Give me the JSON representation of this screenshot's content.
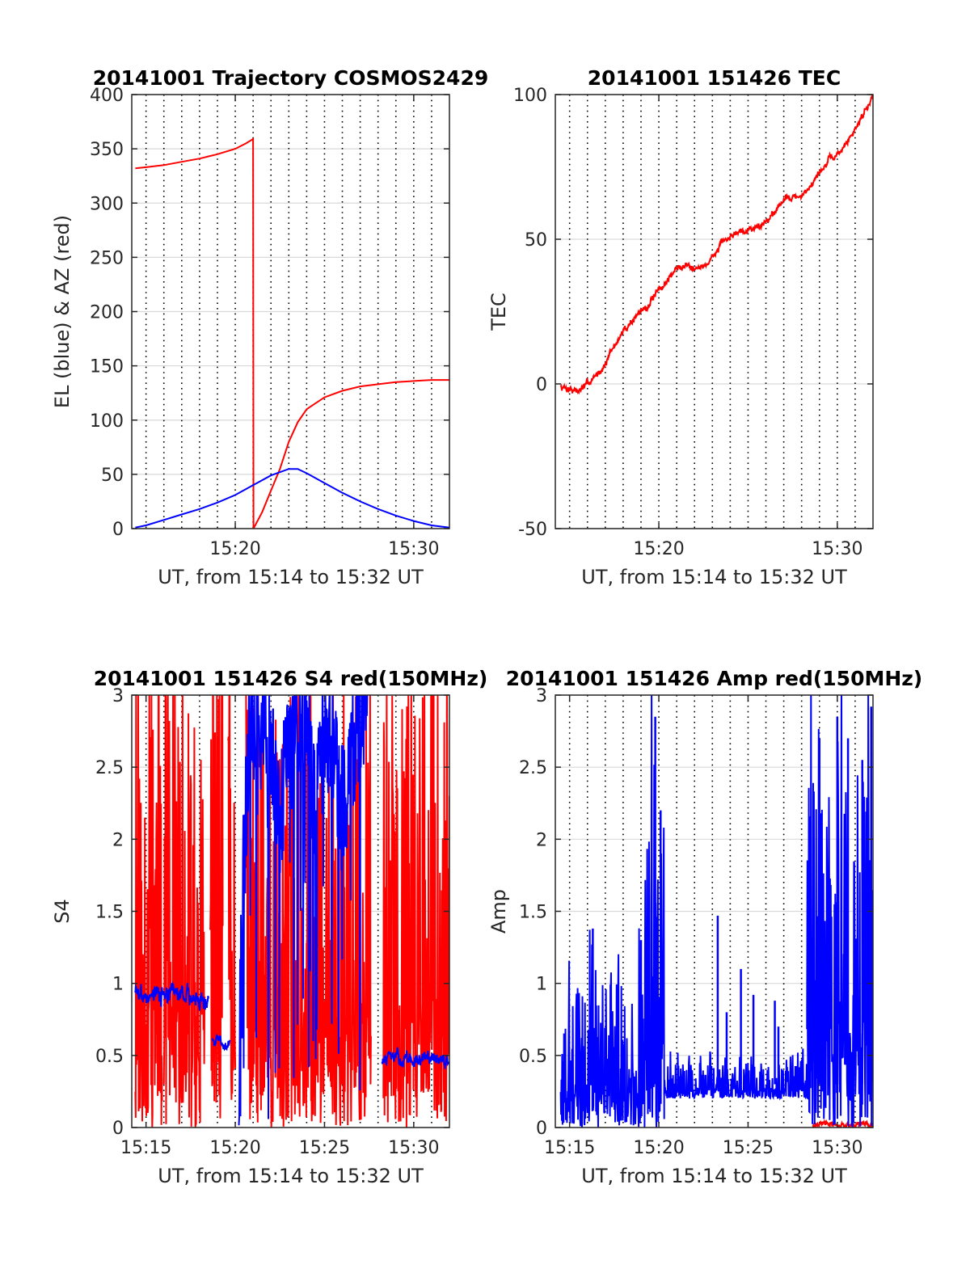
{
  "colors": {
    "red": "#ff0000",
    "blue": "#0000ff",
    "grid": "#d9d9d9",
    "axis": "#262626"
  },
  "chart_data": [
    {
      "type": "line",
      "title": "20141001 Trajectory COSMOS2429",
      "xlabel": "UT, from 15:14 to 15:32 UT",
      "ylabel": "EL (blue) & AZ (red)",
      "xlim": [
        14.2,
        32.0
      ],
      "ylim": [
        0,
        400
      ],
      "xticks": [
        20,
        30
      ],
      "xtick_labels": [
        "15:20",
        "15:30"
      ],
      "yticks": [
        0,
        50,
        100,
        150,
        200,
        250,
        300,
        350,
        400
      ],
      "ytick_labels": [
        "0",
        "50",
        "100",
        "150",
        "200",
        "250",
        "300",
        "350",
        "400"
      ],
      "vlines": [
        15,
        16,
        17,
        18,
        19,
        20,
        21,
        22,
        23,
        24,
        25,
        26,
        27,
        28,
        29,
        30,
        31
      ],
      "grid": true,
      "series": [
        {
          "color": "red",
          "style": "line",
          "points": [
            [
              14.4,
              332
            ],
            [
              15,
              333
            ],
            [
              16,
              335
            ],
            [
              17,
              338
            ],
            [
              18,
              341
            ],
            [
              19,
              345
            ],
            [
              20,
              350
            ],
            [
              20.6,
              355
            ],
            [
              21.0,
              359
            ],
            [
              21.02,
              0
            ],
            [
              21.5,
              15
            ],
            [
              22,
              35
            ],
            [
              22.5,
              55
            ],
            [
              23,
              80
            ],
            [
              23.5,
              98
            ],
            [
              24,
              110
            ],
            [
              25,
              121
            ],
            [
              26,
              127
            ],
            [
              27,
              131
            ],
            [
              28,
              133
            ],
            [
              29,
              135
            ],
            [
              30,
              136
            ],
            [
              31,
              137
            ],
            [
              32,
              137
            ]
          ]
        },
        {
          "color": "blue",
          "style": "line",
          "points": [
            [
              14.4,
              1
            ],
            [
              15,
              3
            ],
            [
              16,
              8
            ],
            [
              17,
              13
            ],
            [
              18,
              18
            ],
            [
              19,
              24
            ],
            [
              20,
              31
            ],
            [
              21,
              40
            ],
            [
              22,
              49
            ],
            [
              23,
              55
            ],
            [
              23.5,
              55
            ],
            [
              24,
              51
            ],
            [
              25,
              42
            ],
            [
              26,
              33
            ],
            [
              27,
              25
            ],
            [
              28,
              18
            ],
            [
              29,
              12
            ],
            [
              30,
              7
            ],
            [
              31,
              3
            ],
            [
              32,
              1
            ]
          ]
        }
      ]
    },
    {
      "type": "line",
      "title": "20141001 151426 TEC",
      "xlabel": "UT, from 15:14 to 15:32 UT",
      "ylabel": "TEC",
      "xlim": [
        14.2,
        32.0
      ],
      "ylim": [
        -50,
        100
      ],
      "xticks": [
        20,
        30
      ],
      "xtick_labels": [
        "15:20",
        "15:30"
      ],
      "yticks": [
        -50,
        0,
        50,
        100
      ],
      "ytick_labels": [
        "-50",
        "0",
        "50",
        "100"
      ],
      "vlines": [
        15,
        16,
        17,
        18,
        19,
        20,
        21,
        22,
        23,
        24,
        25,
        26,
        27,
        28,
        29,
        30,
        31
      ],
      "grid": true,
      "series": [
        {
          "color": "red",
          "style": "noisy",
          "noise": 1.2,
          "seed": 7,
          "points": [
            [
              14.5,
              -1
            ],
            [
              15.0,
              -1.5
            ],
            [
              15.5,
              -2.5
            ],
            [
              16.0,
              0
            ],
            [
              16.5,
              3
            ],
            [
              17.0,
              7
            ],
            [
              17.5,
              13
            ],
            [
              18.0,
              18
            ],
            [
              18.5,
              22
            ],
            [
              19.0,
              25
            ],
            [
              19.5,
              28
            ],
            [
              20.0,
              32
            ],
            [
              20.5,
              36
            ],
            [
              21.0,
              40
            ],
            [
              21.5,
              41
            ],
            [
              22.0,
              41
            ],
            [
              22.5,
              40
            ],
            [
              23.0,
              44
            ],
            [
              23.5,
              48
            ],
            [
              24.0,
              51
            ],
            [
              24.5,
              53
            ],
            [
              25.0,
              54
            ],
            [
              25.5,
              54
            ],
            [
              26.0,
              56
            ],
            [
              26.5,
              60
            ],
            [
              27.0,
              64
            ],
            [
              27.5,
              65
            ],
            [
              28.0,
              64
            ],
            [
              28.5,
              69
            ],
            [
              29.0,
              73
            ],
            [
              29.5,
              77
            ],
            [
              30.0,
              79
            ],
            [
              30.5,
              83
            ],
            [
              31.0,
              88
            ],
            [
              31.5,
              94
            ],
            [
              32.0,
              100
            ]
          ]
        }
      ]
    },
    {
      "type": "line",
      "title": "20141001 151426 S4 red(150MHz)",
      "xlabel": "UT, from 15:14 to 15:32 UT",
      "ylabel": "S4",
      "xlim": [
        14.2,
        32.0
      ],
      "ylim": [
        0,
        3
      ],
      "xticks": [
        15,
        20,
        25,
        30
      ],
      "xtick_labels": [
        "15:15",
        "15:20",
        "15:25",
        "15:30"
      ],
      "yticks": [
        0,
        0.5,
        1,
        1.5,
        2,
        2.5,
        3
      ],
      "ytick_labels": [
        "0",
        "0.5",
        "1",
        "1.5",
        "2",
        "2.5",
        "3"
      ],
      "vlines": [
        15,
        16,
        17,
        18,
        19,
        20,
        21,
        22,
        23,
        24,
        25,
        26,
        27,
        28,
        29,
        30,
        31
      ],
      "grid": true,
      "series": [
        {
          "color": "red",
          "style": "spikes",
          "lo": 0,
          "hi": 3,
          "seed": 11,
          "segments": [
            [
              14.4,
              15.9
            ],
            [
              16.0,
              18.3
            ],
            [
              18.6,
              19.3
            ],
            [
              19.6,
              20.0
            ],
            [
              20.6,
              27.6
            ],
            [
              28.3,
              32.0
            ]
          ]
        },
        {
          "color": "blue",
          "style": "noisy",
          "noise": 0.07,
          "seed": 3,
          "points": [
            [
              14.4,
              0.95
            ],
            [
              15,
              0.93
            ],
            [
              16,
              0.92
            ],
            [
              17,
              0.92
            ],
            [
              18,
              0.9
            ],
            [
              18.5,
              0.88
            ]
          ]
        },
        {
          "color": "blue",
          "style": "noisy",
          "noise": 0.04,
          "seed": 5,
          "points": [
            [
              18.7,
              0.62
            ],
            [
              19.2,
              0.6
            ],
            [
              19.7,
              0.58
            ]
          ]
        },
        {
          "color": "blue",
          "style": "chaos",
          "lo": 0.0,
          "hi": 3,
          "seed": 9,
          "points": [
            [
              20.2,
              0.2
            ],
            [
              20.4,
              1.5
            ],
            [
              20.8,
              2.6
            ],
            [
              21.5,
              2.8
            ],
            [
              22,
              2.5
            ],
            [
              22.5,
              2.0
            ],
            [
              23,
              2.5
            ],
            [
              23.5,
              2.7
            ],
            [
              24,
              2.6
            ],
            [
              24.5,
              2.0
            ],
            [
              25,
              2.6
            ],
            [
              25.5,
              2.5
            ],
            [
              26,
              2.0
            ],
            [
              26.5,
              2.4
            ],
            [
              27,
              2.6
            ],
            [
              27.4,
              2.8
            ]
          ]
        },
        {
          "color": "blue",
          "style": "noisy",
          "noise": 0.05,
          "seed": 13,
          "points": [
            [
              28.2,
              0.47
            ],
            [
              29,
              0.48
            ],
            [
              30,
              0.46
            ],
            [
              31,
              0.48
            ],
            [
              32,
              0.45
            ]
          ]
        }
      ]
    },
    {
      "type": "line",
      "title": "20141001 151426 Amp red(150MHz)",
      "xlabel": "UT, from 15:14 to 15:32 UT",
      "ylabel": "Amp",
      "xlim": [
        14.2,
        32.0
      ],
      "ylim": [
        0,
        3
      ],
      "xticks": [
        15,
        20,
        25,
        30
      ],
      "xtick_labels": [
        "15:15",
        "15:20",
        "15:25",
        "15:30"
      ],
      "yticks": [
        0,
        0.5,
        1,
        1.5,
        2,
        2.5,
        3
      ],
      "ytick_labels": [
        "0",
        "0.5",
        "1",
        "1.5",
        "2",
        "2.5",
        "3"
      ],
      "vlines": [
        15,
        16,
        17,
        18,
        19,
        20,
        21,
        22,
        23,
        24,
        25,
        26,
        27,
        28,
        29,
        30,
        31
      ],
      "grid": true,
      "series": [
        {
          "color": "red",
          "style": "noisy",
          "noise": 0.02,
          "seed": 21,
          "points": [
            [
              28.6,
              0.02
            ],
            [
              29.5,
              0.03
            ],
            [
              30.5,
              0.02
            ],
            [
              32,
              0.02
            ]
          ]
        },
        {
          "color": "blue",
          "style": "spikes",
          "lo": 0,
          "hi": 1.0,
          "seed": 17,
          "segments": [
            [
              14.5,
              19.2
            ]
          ]
        },
        {
          "color": "blue",
          "style": "spikes",
          "lo": 0,
          "hi": 2.3,
          "seed": 19,
          "segments": [
            [
              19.2,
              20.3
            ]
          ]
        },
        {
          "color": "blue",
          "style": "spikes",
          "lo": 0.2,
          "hi": 0.45,
          "seed": 23,
          "segments": [
            [
              20.3,
              28.3
            ]
          ]
        },
        {
          "color": "blue",
          "style": "spikes",
          "lo": 0,
          "hi": 2.5,
          "seed": 29,
          "segments": [
            [
              28.3,
              32.0
            ]
          ]
        },
        {
          "color": "blue",
          "style": "points",
          "points": [
            [
              16.3,
              1.38
            ],
            [
              19.0,
              1.3
            ],
            [
              19.8,
              2.85
            ],
            [
              20.1,
              2.2
            ],
            [
              23.3,
              1.47
            ],
            [
              23.8,
              0.8
            ],
            [
              24.6,
              1.1
            ],
            [
              25.3,
              0.92
            ],
            [
              26.5,
              0.88
            ],
            [
              26.7,
              0.7
            ],
            [
              29.0,
              2.7
            ],
            [
              30.0,
              2.85
            ],
            [
              30.6,
              2.7
            ],
            [
              31.4,
              2.55
            ],
            [
              31.9,
              2.92
            ]
          ]
        }
      ]
    }
  ]
}
